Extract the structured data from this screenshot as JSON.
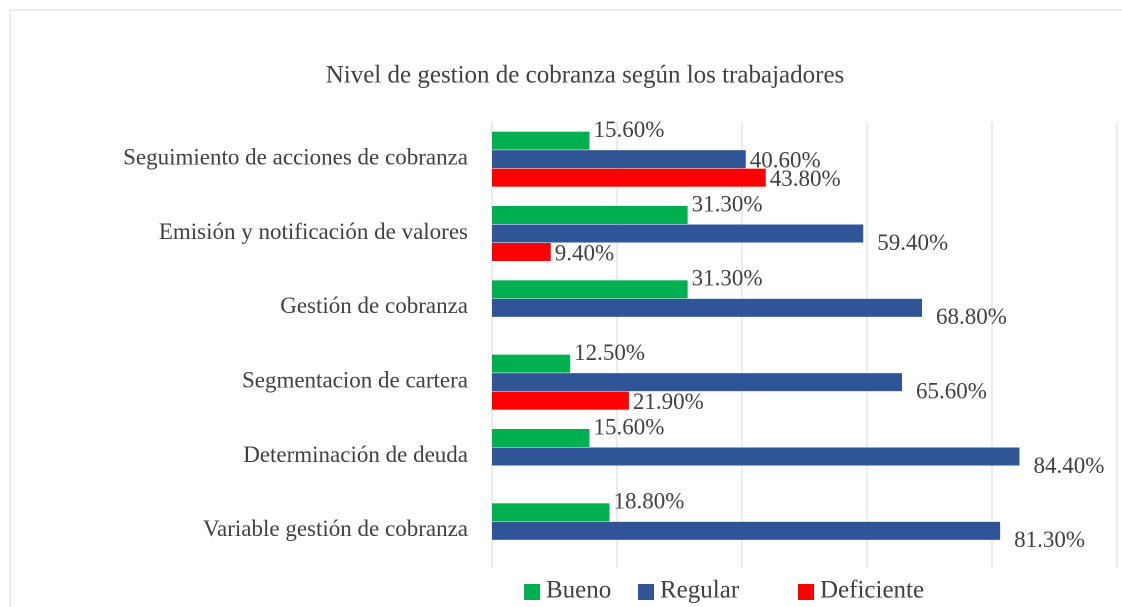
{
  "chart_data": {
    "type": "hbar",
    "title": "Nivel de gestion de cobranza según los trabajadores",
    "categories": [
      "Seguimiento de acciones de cobranza",
      "Emisión y notificación de valores",
      "Gestión de cobranza",
      "Segmentacion de cartera",
      "Determinación de deuda",
      "Variable gestión de cobranza"
    ],
    "series": [
      {
        "name": "Bueno",
        "color": "#00b050",
        "values": [
          15.6,
          31.3,
          31.3,
          12.5,
          15.6,
          18.8
        ],
        "value_labels": [
          "15.60%",
          "31.30%",
          "31.30%",
          "12.50%",
          "15.60%",
          "18.80%"
        ]
      },
      {
        "name": "Regular",
        "color": "#2f5597",
        "values": [
          40.6,
          59.4,
          68.8,
          65.6,
          84.4,
          81.3
        ],
        "value_labels": [
          "40.60%",
          "59.40%",
          "68.80%",
          "65.60%",
          "84.40%",
          "81.30%"
        ]
      },
      {
        "name": "Deficiente",
        "color": "#ff0000",
        "values": [
          43.8,
          9.4,
          null,
          21.9,
          null,
          null
        ],
        "value_labels": [
          "43.80%",
          "9.40%",
          null,
          "21.90%",
          null,
          null
        ]
      }
    ],
    "xlim": [
      0,
      100
    ],
    "xticks": [
      0,
      20,
      40,
      60,
      80,
      100
    ],
    "grid": true,
    "legend": "bottom"
  }
}
